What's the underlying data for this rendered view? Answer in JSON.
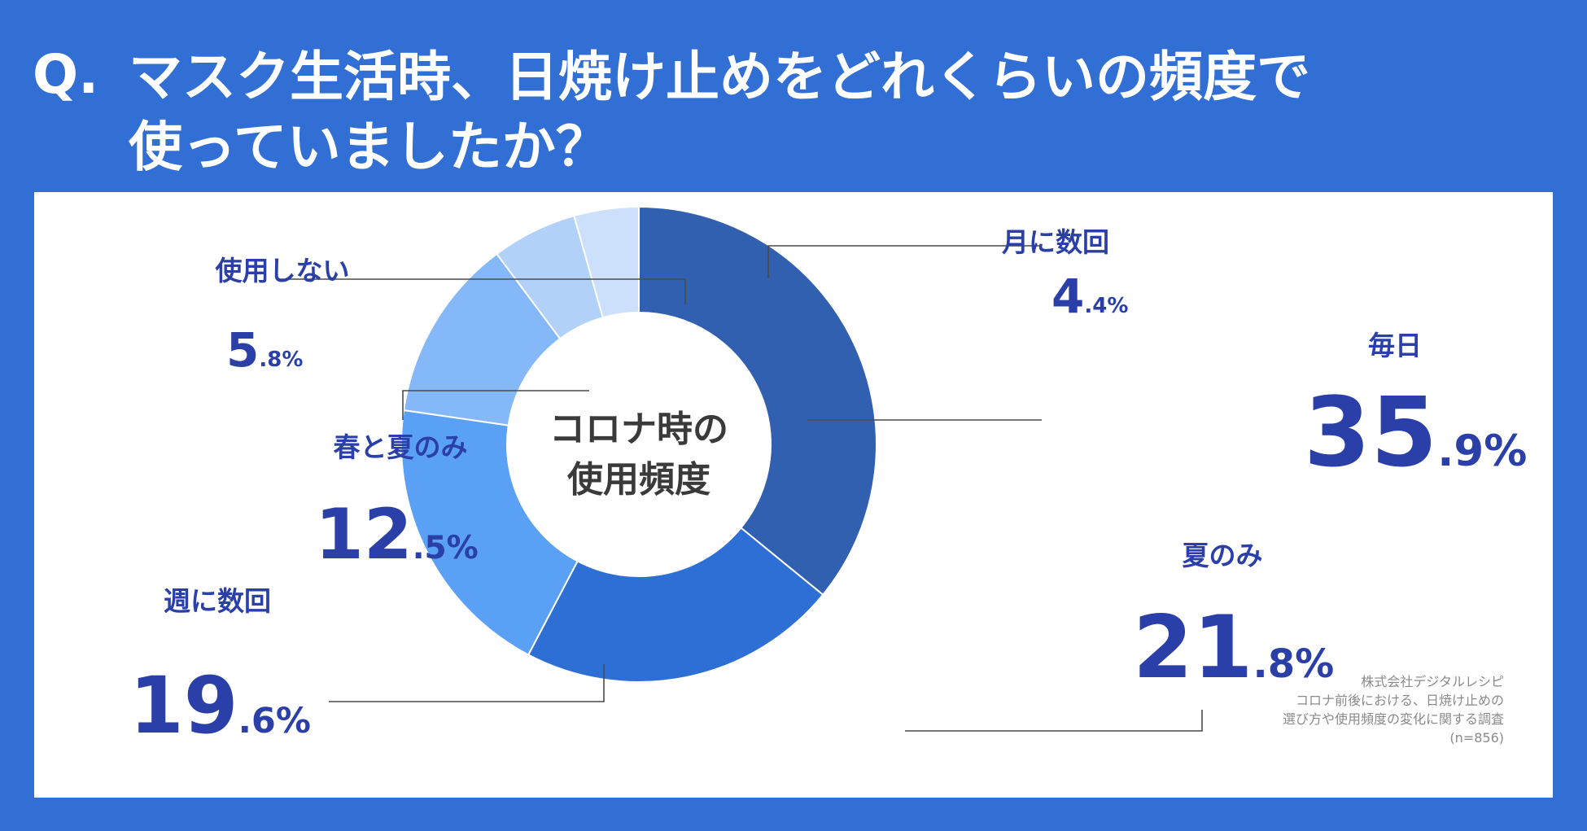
{
  "question": {
    "mark": "Q.",
    "line1": "マスク生活時、日焼け止めをどれくらいの頻度で",
    "line2": "使っていましたか？"
  },
  "source": {
    "line1": "株式会社デジタルレシピ",
    "line2": "コロナ前後における、日焼け止めの",
    "line3": "選び方や使用頻度の変化に関する調査",
    "line4": "(n=856)"
  },
  "chart_data": {
    "type": "pie",
    "center_label": [
      "コロナ時の",
      "使用頻度"
    ],
    "categories": [
      "毎日",
      "夏のみ",
      "週に数回",
      "春と夏のみ",
      "使用しない",
      "月に数回"
    ],
    "values": [
      35.9,
      21.8,
      19.6,
      12.5,
      5.8,
      4.4
    ],
    "unit": "%",
    "colors": [
      "#3160b0",
      "#2e6fd6",
      "#5aa0f5",
      "#85b8f8",
      "#b2d1f8",
      "#cde0fb"
    ]
  }
}
